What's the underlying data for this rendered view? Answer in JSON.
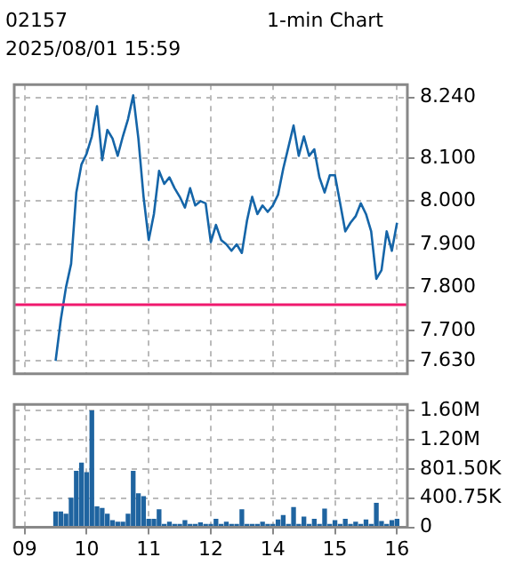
{
  "chart_data": [
    {
      "type": "line",
      "title": "02157",
      "annotations": [
        "1-min Chart",
        "2025/08/01 15:59"
      ],
      "categories": [
        null,
        null,
        "09",
        null,
        null,
        null,
        null,
        null,
        null,
        null,
        null,
        null,
        null,
        null,
        "10",
        null,
        null,
        null,
        null,
        null,
        null,
        null,
        null,
        null,
        null,
        null,
        "11",
        null,
        null,
        null,
        null,
        null,
        null,
        null,
        null,
        null,
        null,
        null,
        "12",
        null,
        null,
        null,
        null,
        null,
        null,
        null,
        null,
        null,
        null,
        null,
        "14",
        null,
        null,
        null,
        null,
        null,
        null,
        null,
        null,
        null,
        null,
        null,
        "15",
        null,
        null,
        null,
        null,
        null,
        null,
        null,
        null,
        null,
        null,
        null,
        "16",
        null,
        null
      ],
      "values": [
        null,
        null,
        null,
        null,
        null,
        null,
        null,
        null,
        7.63,
        7.725,
        7.8,
        7.855,
        8.02,
        8.085,
        8.11,
        8.15,
        8.22,
        8.095,
        8.165,
        8.145,
        8.105,
        8.15,
        8.19,
        8.245,
        8.145,
        8.01,
        7.91,
        7.97,
        8.07,
        8.04,
        8.055,
        8.03,
        8.01,
        7.985,
        8.03,
        7.99,
        8.0,
        7.995,
        7.905,
        7.945,
        7.91,
        7.9,
        7.885,
        7.9,
        7.88,
        7.955,
        8.01,
        7.97,
        7.99,
        7.975,
        7.99,
        8.015,
        8.075,
        8.125,
        8.175,
        8.105,
        8.15,
        8.105,
        8.12,
        8.055,
        8.02,
        8.06,
        8.06,
        7.995,
        7.93,
        7.95,
        7.965,
        7.995,
        7.97,
        7.93,
        7.82,
        7.84,
        7.93,
        7.885,
        7.95,
        null,
        null
      ],
      "color": "#1565a8",
      "ylim": [
        7.6,
        8.27
      ],
      "yticks": [
        {
          "value": 7.63,
          "label": "7.630"
        },
        {
          "value": 7.7,
          "label": "7.700"
        },
        {
          "value": 7.8,
          "label": "7.800"
        },
        {
          "value": 7.9,
          "label": "7.900"
        },
        {
          "value": 8.0,
          "label": "8.000"
        },
        {
          "value": 8.1,
          "label": "8.100"
        },
        {
          "value": 8.24,
          "label": "8.240"
        }
      ],
      "ref_lines": [
        {
          "axis": "y",
          "value": 7.76,
          "color": "#f0196e"
        }
      ],
      "grid": true,
      "tick_labels": "y"
    },
    {
      "type": "bar",
      "categories": [
        null,
        null,
        "09",
        null,
        null,
        null,
        null,
        null,
        null,
        null,
        null,
        null,
        null,
        null,
        "10",
        null,
        null,
        null,
        null,
        null,
        null,
        null,
        null,
        null,
        null,
        null,
        "11",
        null,
        null,
        null,
        null,
        null,
        null,
        null,
        null,
        null,
        null,
        null,
        "12",
        null,
        null,
        null,
        null,
        null,
        null,
        null,
        null,
        null,
        null,
        null,
        "14",
        null,
        null,
        null,
        null,
        null,
        null,
        null,
        null,
        null,
        null,
        null,
        "15",
        null,
        null,
        null,
        null,
        null,
        null,
        null,
        null,
        null,
        null,
        null,
        "16",
        null,
        null
      ],
      "values": [
        null,
        null,
        null,
        null,
        null,
        null,
        null,
        null,
        210000,
        210000,
        180000,
        400000,
        770000,
        880000,
        750000,
        1600000,
        280000,
        260000,
        180000,
        90000,
        70000,
        70000,
        180000,
        770000,
        460000,
        420000,
        110000,
        110000,
        240000,
        40000,
        70000,
        40000,
        40000,
        90000,
        40000,
        40000,
        60000,
        40000,
        40000,
        110000,
        40000,
        70000,
        40000,
        40000,
        240000,
        40000,
        40000,
        40000,
        70000,
        40000,
        40000,
        100000,
        160000,
        40000,
        270000,
        40000,
        140000,
        40000,
        110000,
        40000,
        250000,
        40000,
        90000,
        40000,
        110000,
        40000,
        70000,
        40000,
        100000,
        40000,
        330000,
        80000,
        40000,
        90000,
        110000,
        null,
        null
      ],
      "color": "#1f64a0",
      "ylim": [
        0,
        1690000
      ],
      "yticks": [
        0,
        {
          "value": 400750,
          "label": "400.75K"
        },
        {
          "value": 801500,
          "label": "801.50K"
        },
        {
          "value": 1202250,
          "label": "1.20M"
        },
        {
          "value": 1603000,
          "label": "1.60M"
        }
      ],
      "grid": true
    }
  ]
}
